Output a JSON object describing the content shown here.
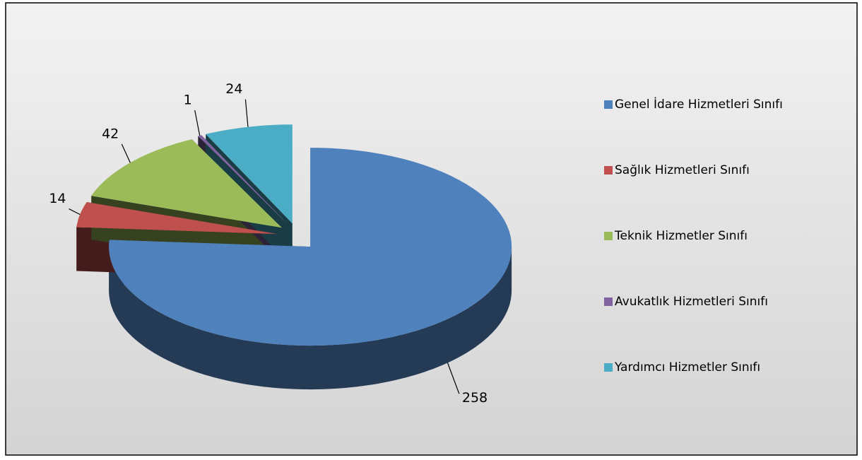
{
  "chart_data": {
    "type": "pie3d",
    "categories": [
      "Genel İdare Hizmetleri Sınıfı",
      "Sağlık Hizmetleri Sınıfı",
      "Teknik Hizmetler Sınıfı",
      "Avukatlık Hizmetleri Sınıfı",
      "Yardımcı Hizmetler Sınıfı"
    ],
    "values": [
      258,
      14,
      42,
      1,
      24
    ],
    "colors": [
      "#4f81bd",
      "#c0504d",
      "#9bbb59",
      "#8064a2",
      "#4bacc6"
    ],
    "legend": "right"
  }
}
